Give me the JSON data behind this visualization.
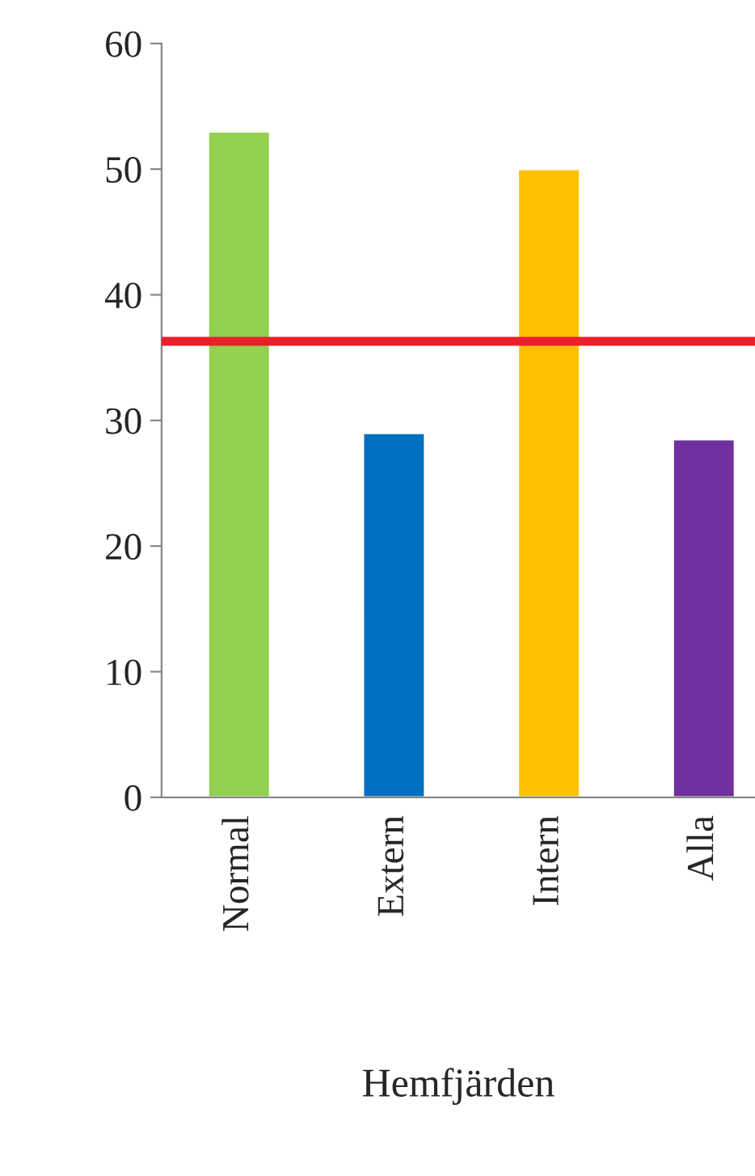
{
  "chart_data": {
    "type": "bar",
    "xlabel": "Hemfjärden",
    "categories": [
      "Normal",
      "Extern",
      "Intern",
      "Alla"
    ],
    "values": [
      53,
      29,
      50,
      28.5
    ],
    "colors": [
      "#92d050",
      "#0070c0",
      "#ffc000",
      "#7030a0"
    ],
    "ylim": [
      0,
      60
    ],
    "yticks": [
      0,
      10,
      20,
      30,
      40,
      50,
      60
    ],
    "ref_lines": [
      {
        "axis": "y",
        "value": 36.3,
        "color": "#e8202a"
      }
    ],
    "grid": false,
    "legend": false
  }
}
